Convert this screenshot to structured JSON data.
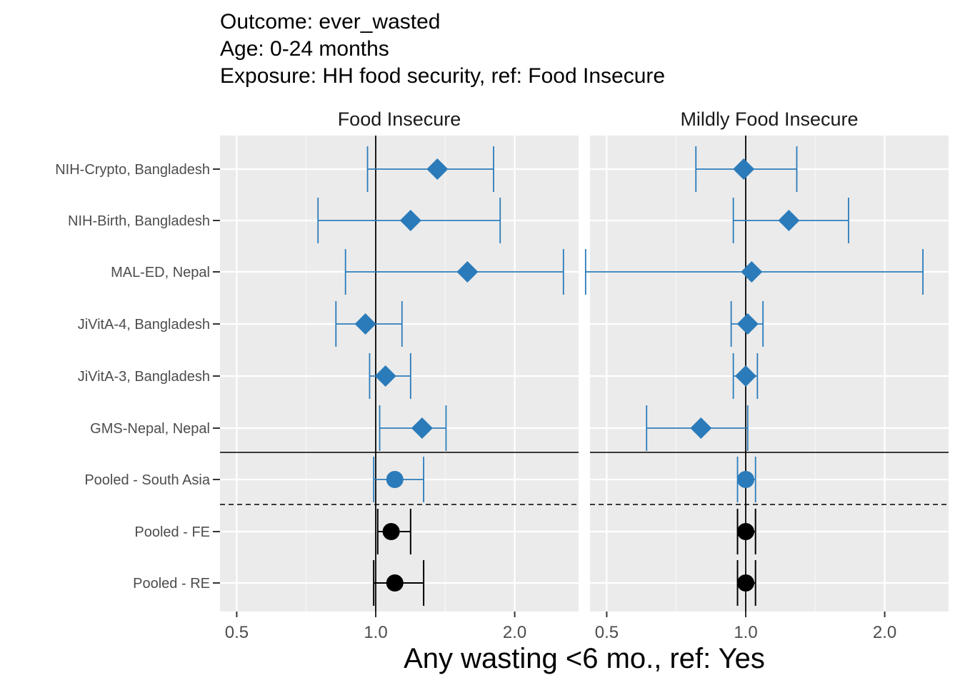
{
  "title_lines": [
    "Outcome: ever_wasted",
    "Age: 0-24 months",
    "Exposure: HH food security, ref: Food Insecure"
  ],
  "chart_data": {
    "type": "forest",
    "xlabel": "Any wasting  <6 mo., ref: Yes",
    "x_scale": "log",
    "x_ticks": [
      0.5,
      1.0,
      2.0
    ],
    "x_tick_labels": [
      "0.5",
      "1.0",
      "2.0"
    ],
    "xlim": [
      0.46,
      2.75
    ],
    "reference_line": 1.0,
    "row_labels": [
      "NIH-Crypto, Bangladesh",
      "NIH-Birth, Bangladesh",
      "MAL-ED, Nepal",
      "JiVitA-4, Bangladesh",
      "JiVitA-3, Bangladesh",
      "GMS-Nepal, Nepal",
      "Pooled - South Asia",
      "Pooled - FE",
      "Pooled - RE"
    ],
    "colors": {
      "cohort": "#2B7BBA",
      "pooled_region": "#2B7BBA",
      "pooled_overall": "#000000"
    },
    "panels": [
      {
        "label": "Food Insecure",
        "rows": [
          {
            "est": 1.36,
            "lo": 0.96,
            "hi": 1.8
          },
          {
            "est": 1.19,
            "lo": 0.75,
            "hi": 1.86
          },
          {
            "est": 1.58,
            "lo": 0.86,
            "hi": 2.55
          },
          {
            "est": 0.95,
            "lo": 0.82,
            "hi": 1.14
          },
          {
            "est": 1.05,
            "lo": 0.97,
            "hi": 1.19
          },
          {
            "est": 1.26,
            "lo": 1.02,
            "hi": 1.42
          },
          {
            "est": 1.1,
            "lo": 0.99,
            "hi": 1.27
          },
          {
            "est": 1.08,
            "lo": 1.01,
            "hi": 1.19
          },
          {
            "est": 1.1,
            "lo": 0.99,
            "hi": 1.27
          }
        ]
      },
      {
        "label": "Mildly Food Insecure",
        "rows": [
          {
            "est": 0.99,
            "lo": 0.78,
            "hi": 1.29
          },
          {
            "est": 1.24,
            "lo": 0.94,
            "hi": 1.67
          },
          {
            "est": 1.03,
            "lo": 0.45,
            "hi": 2.42
          },
          {
            "est": 1.01,
            "lo": 0.93,
            "hi": 1.09
          },
          {
            "est": 1.0,
            "lo": 0.94,
            "hi": 1.06
          },
          {
            "est": 0.8,
            "lo": 0.61,
            "hi": 1.01
          },
          {
            "est": 1.0,
            "lo": 0.96,
            "hi": 1.05
          },
          {
            "est": 1.0,
            "lo": 0.96,
            "hi": 1.05
          },
          {
            "est": 1.0,
            "lo": 0.96,
            "hi": 1.05
          }
        ]
      }
    ]
  }
}
